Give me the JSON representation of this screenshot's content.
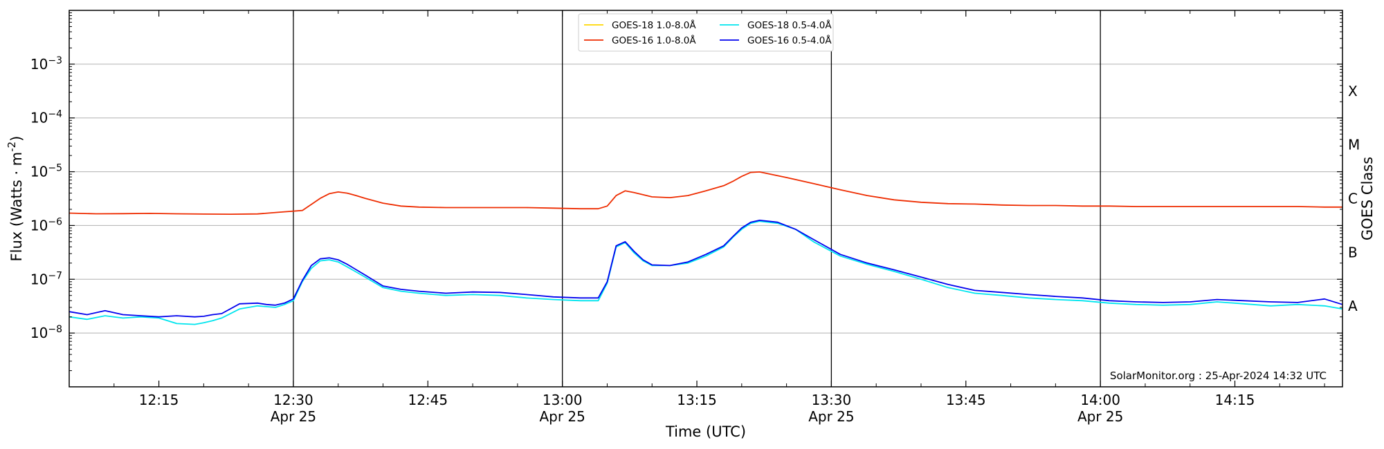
{
  "chart_data": {
    "type": "line",
    "xlabel": "Time (UTC)",
    "ylabel_main": "Flux (Watts · m",
    "ylabel_sup": "-2",
    "ylabel_close": ")",
    "right_axis_label": "GOES Class",
    "credit": "SolarMonitor.org : 25-Apr-2024 14:32 UTC",
    "yscale": "log",
    "ylim": [
      1e-09,
      0.01
    ],
    "xlim": [
      "12:05",
      "14:27"
    ],
    "grid": "horizontal",
    "legend_position": "top-center",
    "y_ticks": [
      {
        "value": 1e-08,
        "base": "10",
        "exp": "−8"
      },
      {
        "value": 1e-07,
        "base": "10",
        "exp": "−7"
      },
      {
        "value": 1e-06,
        "base": "10",
        "exp": "−6"
      },
      {
        "value": 1e-05,
        "base": "10",
        "exp": "−5"
      },
      {
        "value": 0.0001,
        "base": "10",
        "exp": "−4"
      },
      {
        "value": 0.001,
        "base": "10",
        "exp": "−3"
      }
    ],
    "goes_classes": [
      {
        "label": "A",
        "value": 3.16e-08
      },
      {
        "label": "B",
        "value": 3.16e-07
      },
      {
        "label": "C",
        "value": 3.16e-06
      },
      {
        "label": "M",
        "value": 3.16e-05
      },
      {
        "label": "X",
        "value": 0.000316
      }
    ],
    "x_ticks": [
      {
        "time": "12:15",
        "label": "12:15",
        "sub": ""
      },
      {
        "time": "12:30",
        "label": "12:30",
        "sub": "Apr 25"
      },
      {
        "time": "12:45",
        "label": "12:45",
        "sub": ""
      },
      {
        "time": "13:00",
        "label": "13:00",
        "sub": "Apr 25"
      },
      {
        "time": "13:15",
        "label": "13:15",
        "sub": ""
      },
      {
        "time": "13:30",
        "label": "13:30",
        "sub": "Apr 25"
      },
      {
        "time": "13:45",
        "label": "13:45",
        "sub": ""
      },
      {
        "time": "14:00",
        "label": "14:00",
        "sub": "Apr 25"
      },
      {
        "time": "14:15",
        "label": "14:15",
        "sub": ""
      }
    ],
    "vertical_lines": [
      "12:30",
      "13:00",
      "13:30",
      "14:00"
    ],
    "legend": [
      {
        "label": "GOES-18 1.0-8.0Å",
        "color": "#ffd700"
      },
      {
        "label": "GOES-18 0.5-4.0Å",
        "color": "#00e5ee"
      },
      {
        "label": "GOES-16 1.0-8.0Å",
        "color": "#ee2c00"
      },
      {
        "label": "GOES-16 0.5-4.0Å",
        "color": "#0000ee"
      }
    ],
    "series": [
      {
        "name": "GOES-16 1.0-8.0Å",
        "color": "#ee2c00",
        "x": [
          "12:05",
          "12:08",
          "12:11",
          "12:14",
          "12:17",
          "12:20",
          "12:23",
          "12:26",
          "12:29",
          "12:31",
          "12:33",
          "12:34",
          "12:35",
          "12:36",
          "12:37",
          "12:38",
          "12:40",
          "12:42",
          "12:44",
          "12:47",
          "12:50",
          "12:53",
          "12:56",
          "12:59",
          "13:02",
          "13:04",
          "13:05",
          "13:06",
          "13:07",
          "13:08",
          "13:10",
          "13:12",
          "13:14",
          "13:16",
          "13:18",
          "13:19",
          "13:20",
          "13:21",
          "13:22",
          "13:25",
          "13:28",
          "13:31",
          "13:34",
          "13:37",
          "13:40",
          "13:43",
          "13:46",
          "13:49",
          "13:52",
          "13:55",
          "13:58",
          "14:01",
          "14:04",
          "14:07",
          "14:10",
          "14:13",
          "14:16",
          "14:19",
          "14:22",
          "14:25",
          "14:27"
        ],
        "y": [
          1.7e-06,
          1.65e-06,
          1.66e-06,
          1.68e-06,
          1.65e-06,
          1.63e-06,
          1.62e-06,
          1.64e-06,
          1.8e-06,
          1.9e-06,
          3.2e-06,
          3.9e-06,
          4.2e-06,
          4e-06,
          3.6e-06,
          3.2e-06,
          2.6e-06,
          2.3e-06,
          2.2e-06,
          2.15e-06,
          2.15e-06,
          2.15e-06,
          2.15e-06,
          2.1e-06,
          2.05e-06,
          2.05e-06,
          2.3e-06,
          3.6e-06,
          4.4e-06,
          4.1e-06,
          3.4e-06,
          3.3e-06,
          3.6e-06,
          4.4e-06,
          5.5e-06,
          6.6e-06,
          8.2e-06,
          9.7e-06,
          9.9e-06,
          7.8e-06,
          6e-06,
          4.6e-06,
          3.6e-06,
          3e-06,
          2.7e-06,
          2.55e-06,
          2.5e-06,
          2.4e-06,
          2.35e-06,
          2.35e-06,
          2.3e-06,
          2.3e-06,
          2.25e-06,
          2.25e-06,
          2.25e-06,
          2.25e-06,
          2.25e-06,
          2.25e-06,
          2.25e-06,
          2.2e-06,
          2.2e-06
        ]
      },
      {
        "name": "GOES-18 0.5-4.0Å",
        "color": "#00e5ee",
        "x": [
          "12:05",
          "12:07",
          "12:09",
          "12:11",
          "12:13",
          "12:15",
          "12:17",
          "12:19",
          "12:20",
          "12:21",
          "12:22",
          "12:24",
          "12:26",
          "12:27",
          "12:28",
          "12:29",
          "12:30",
          "12:31",
          "12:32",
          "12:33",
          "12:34",
          "12:35",
          "12:36",
          "12:38",
          "12:40",
          "12:42",
          "12:44",
          "12:47",
          "12:50",
          "12:53",
          "12:56",
          "12:59",
          "13:02",
          "13:04",
          "13:05",
          "13:06",
          "13:07",
          "13:08",
          "13:09",
          "13:10",
          "13:12",
          "13:14",
          "13:16",
          "13:18",
          "13:19",
          "13:20",
          "13:21",
          "13:22",
          "13:24",
          "13:26",
          "13:28",
          "13:31",
          "13:34",
          "13:37",
          "13:40",
          "13:43",
          "13:46",
          "13:49",
          "13:52",
          "13:55",
          "13:58",
          "14:01",
          "14:04",
          "14:07",
          "14:10",
          "14:13",
          "14:16",
          "14:19",
          "14:22",
          "14:25",
          "14:27"
        ],
        "y": [
          2e-08,
          1.8e-08,
          2.1e-08,
          1.9e-08,
          2e-08,
          1.9e-08,
          1.5e-08,
          1.45e-08,
          1.55e-08,
          1.7e-08,
          1.9e-08,
          2.8e-08,
          3.2e-08,
          3.1e-08,
          3e-08,
          3.4e-08,
          4e-08,
          9e-08,
          1.6e-07,
          2.2e-07,
          2.3e-07,
          2.1e-07,
          1.7e-07,
          1.1e-07,
          7e-08,
          6e-08,
          5.5e-08,
          5e-08,
          5.2e-08,
          5e-08,
          4.5e-08,
          4.2e-08,
          4e-08,
          4e-08,
          8.5e-08,
          4e-07,
          4.8e-07,
          3.1e-07,
          2.2e-07,
          1.8e-07,
          1.8e-07,
          2e-07,
          2.7e-07,
          4e-07,
          6e-07,
          8.5e-07,
          1.1e-06,
          1.2e-06,
          1.1e-06,
          8.5e-07,
          5e-07,
          2.7e-07,
          1.9e-07,
          1.4e-07,
          1e-07,
          7e-08,
          5.5e-08,
          5e-08,
          4.5e-08,
          4.2e-08,
          4e-08,
          3.6e-08,
          3.4e-08,
          3.3e-08,
          3.4e-08,
          3.8e-08,
          3.5e-08,
          3.2e-08,
          3.4e-08,
          3.2e-08,
          2.8e-08
        ]
      },
      {
        "name": "GOES-16 0.5-4.0Å",
        "color": "#0000ee",
        "x": [
          "12:05",
          "12:07",
          "12:09",
          "12:11",
          "12:13",
          "12:15",
          "12:17",
          "12:19",
          "12:20",
          "12:21",
          "12:22",
          "12:24",
          "12:26",
          "12:27",
          "12:28",
          "12:29",
          "12:30",
          "12:31",
          "12:32",
          "12:33",
          "12:34",
          "12:35",
          "12:36",
          "12:38",
          "12:40",
          "12:42",
          "12:44",
          "12:47",
          "12:50",
          "12:53",
          "12:56",
          "12:59",
          "13:02",
          "13:04",
          "13:05",
          "13:06",
          "13:07",
          "13:08",
          "13:09",
          "13:10",
          "13:12",
          "13:14",
          "13:16",
          "13:18",
          "13:19",
          "13:20",
          "13:21",
          "13:22",
          "13:24",
          "13:26",
          "13:28",
          "13:31",
          "13:34",
          "13:37",
          "13:40",
          "13:43",
          "13:46",
          "13:49",
          "13:52",
          "13:55",
          "13:58",
          "14:01",
          "14:04",
          "14:07",
          "14:10",
          "14:13",
          "14:16",
          "14:19",
          "14:22",
          "14:25",
          "14:27"
        ],
        "y": [
          2.5e-08,
          2.2e-08,
          2.6e-08,
          2.2e-08,
          2.1e-08,
          2e-08,
          2.1e-08,
          2e-08,
          2.05e-08,
          2.2e-08,
          2.3e-08,
          3.5e-08,
          3.6e-08,
          3.4e-08,
          3.3e-08,
          3.6e-08,
          4.3e-08,
          9.5e-08,
          1.8e-07,
          2.4e-07,
          2.5e-07,
          2.3e-07,
          1.9e-07,
          1.2e-07,
          7.5e-08,
          6.5e-08,
          6e-08,
          5.5e-08,
          5.8e-08,
          5.7e-08,
          5.2e-08,
          4.7e-08,
          4.5e-08,
          4.5e-08,
          9e-08,
          4.2e-07,
          5e-07,
          3.3e-07,
          2.3e-07,
          1.85e-07,
          1.8e-07,
          2.1e-07,
          2.9e-07,
          4.2e-07,
          6.2e-07,
          9e-07,
          1.15e-06,
          1.25e-06,
          1.15e-06,
          8.5e-07,
          5.5e-07,
          2.9e-07,
          2e-07,
          1.5e-07,
          1.1e-07,
          8e-08,
          6.2e-08,
          5.7e-08,
          5.2e-08,
          4.8e-08,
          4.5e-08,
          4e-08,
          3.8e-08,
          3.7e-08,
          3.8e-08,
          4.2e-08,
          4e-08,
          3.8e-08,
          3.7e-08,
          4.3e-08,
          3.4e-08
        ]
      }
    ]
  }
}
